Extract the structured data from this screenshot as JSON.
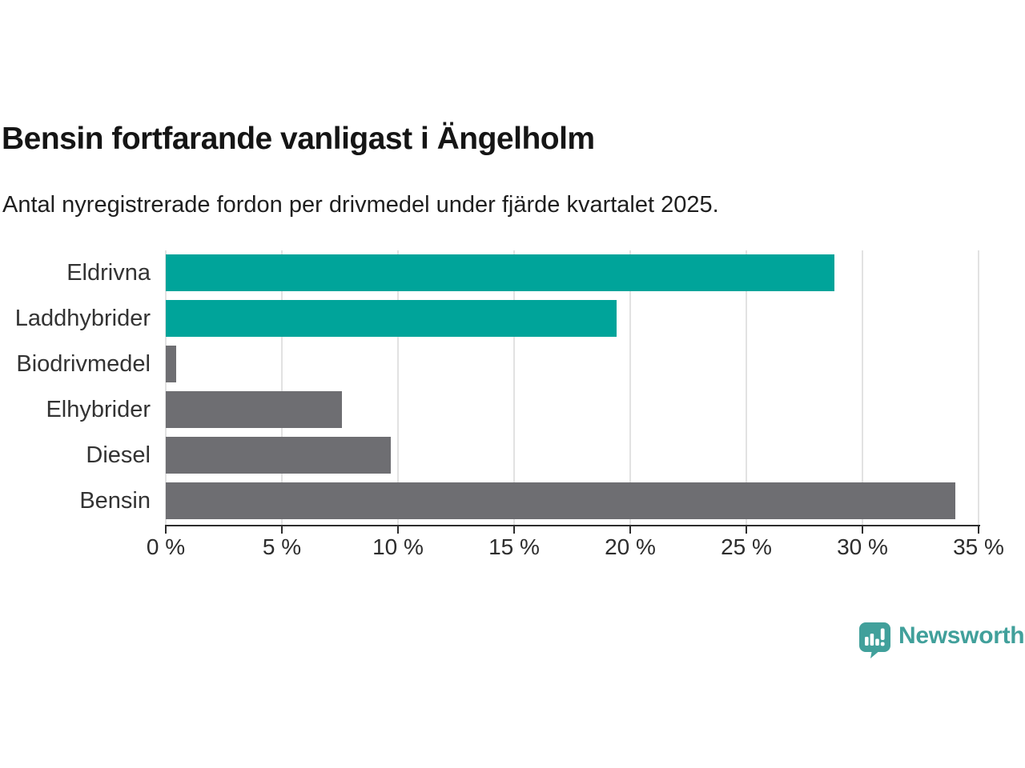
{
  "chart_data": {
    "type": "bar",
    "orientation": "horizontal",
    "title": "Bensin fortfarande vanligast i Ängelholm",
    "subtitle": "Antal nyregistrerade fordon per drivmedel under fjärde kvartalet 2025.",
    "categories": [
      "Eldrivna",
      "Laddhybrider",
      "Biodrivmedel",
      "Elhybrider",
      "Diesel",
      "Bensin"
    ],
    "values": [
      28.8,
      19.4,
      0.45,
      7.6,
      9.7,
      34.0
    ],
    "value_unit": "%",
    "bar_colors": [
      "#00A49A",
      "#00A49A",
      "#6E6E72",
      "#6E6E72",
      "#6E6E72",
      "#6E6E72"
    ],
    "highlight_color": "#00A49A",
    "default_color": "#6E6E72",
    "x_tick_values": [
      0,
      5,
      10,
      15,
      20,
      25,
      30,
      35
    ],
    "x_tick_labels": [
      "0 %",
      "5 %",
      "10 %",
      "15 %",
      "20 %",
      "25 %",
      "30 %",
      "35 %"
    ],
    "xlim": [
      0,
      35.5
    ],
    "grid": true,
    "legend_position": "none"
  },
  "branding": {
    "logo_text": "Newsworthy",
    "logo_icon": "bar-chart-speech-bubble",
    "logo_color": "#41A09B"
  },
  "colors": {
    "gridline": "#E2E2E2",
    "axis": "#2D2D2D",
    "title": "#151515",
    "subtitle": "#1F1F1F",
    "category_label": "#333333",
    "tick_label": "#2D2D2D",
    "background": "#FFFFFF"
  }
}
